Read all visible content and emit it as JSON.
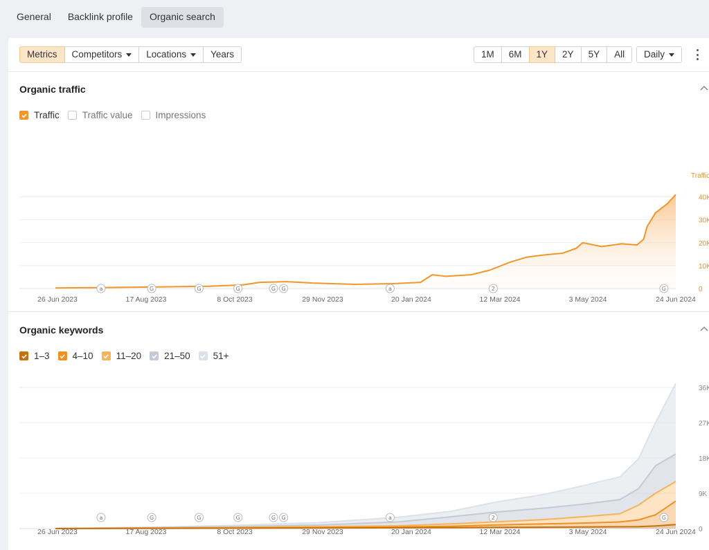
{
  "top_tabs": [
    {
      "label": "General",
      "active": false
    },
    {
      "label": "Backlink profile",
      "active": false
    },
    {
      "label": "Organic search",
      "active": true
    }
  ],
  "toolbar": {
    "left_buttons": [
      {
        "label": "Metrics",
        "active": true,
        "dropdown": false
      },
      {
        "label": "Competitors",
        "active": false,
        "dropdown": true
      },
      {
        "label": "Locations",
        "active": false,
        "dropdown": true
      },
      {
        "label": "Years",
        "active": false,
        "dropdown": false
      }
    ],
    "range_buttons": [
      {
        "label": "1M",
        "active": false
      },
      {
        "label": "6M",
        "active": false
      },
      {
        "label": "1Y",
        "active": true
      },
      {
        "label": "2Y",
        "active": false
      },
      {
        "label": "5Y",
        "active": false
      },
      {
        "label": "All",
        "active": false
      }
    ],
    "granularity": "Daily"
  },
  "traffic": {
    "title": "Organic traffic",
    "legend": [
      {
        "label": "Traffic",
        "checked": true,
        "color": "#f0962a"
      },
      {
        "label": "Traffic value",
        "checked": false,
        "color": "#c7cbd0"
      },
      {
        "label": "Impressions",
        "checked": false,
        "color": "#c7cbd0"
      }
    ],
    "axis_title": "Traffic",
    "y_ticks": [
      "40K",
      "30K",
      "20K",
      "10K",
      "0"
    ],
    "y_max": 40000
  },
  "keywords": {
    "title": "Organic keywords",
    "legend": [
      {
        "label": "1–3",
        "checked": true,
        "color": "#c47112"
      },
      {
        "label": "4–10",
        "checked": true,
        "color": "#ef9021"
      },
      {
        "label": "11–20",
        "checked": true,
        "color": "#f7b35a"
      },
      {
        "label": "21–50",
        "checked": true,
        "color": "#c3cad6"
      },
      {
        "label": "51+",
        "checked": true,
        "color": "#dde1e8"
      }
    ],
    "y_ticks": [
      "36K",
      "27K",
      "18K",
      "9K",
      "0"
    ],
    "y_max": 36000
  },
  "x_labels": [
    "26 Jun 2023",
    "17 Aug 2023",
    "8 Oct 2023",
    "29 Nov 2023",
    "20 Jan 2024",
    "12 Mar 2024",
    "3 May 2024",
    "24 Jun 2024"
  ],
  "markers": [
    {
      "label": "a",
      "date": "2023-07-23"
    },
    {
      "label": "G",
      "date": "2023-08-22"
    },
    {
      "label": "G",
      "date": "2023-09-19"
    },
    {
      "label": "G",
      "date": "2023-10-12"
    },
    {
      "label": "G",
      "date": "2023-11-02"
    },
    {
      "label": "G",
      "date": "2023-11-08"
    },
    {
      "label": "a",
      "date": "2024-01-10"
    },
    {
      "label": "2",
      "date": "2024-03-11"
    },
    {
      "label": "G",
      "date": "2024-06-20"
    }
  ],
  "chart_data": [
    {
      "type": "area",
      "title": "Organic traffic",
      "ylabel": "Traffic",
      "ylim": [
        0,
        40000
      ],
      "x_tick_labels": [
        "26 Jun 2023",
        "17 Aug 2023",
        "8 Oct 2023",
        "29 Nov 2023",
        "20 Jan 2024",
        "12 Mar 2024",
        "3 May 2024",
        "24 Jun 2024"
      ],
      "series": [
        {
          "name": "Traffic",
          "color": "#f0962a",
          "points": [
            [
              "2023-06-26",
              200
            ],
            [
              "2023-07-20",
              400
            ],
            [
              "2023-08-25",
              700
            ],
            [
              "2023-09-25",
              1000
            ],
            [
              "2023-10-15",
              1600
            ],
            [
              "2023-10-25",
              2700
            ],
            [
              "2023-11-10",
              3000
            ],
            [
              "2023-11-25",
              2400
            ],
            [
              "2023-12-20",
              1800
            ],
            [
              "2024-01-12",
              2100
            ],
            [
              "2024-01-28",
              2700
            ],
            [
              "2024-02-04",
              6000
            ],
            [
              "2024-02-12",
              5300
            ],
            [
              "2024-02-27",
              6000
            ],
            [
              "2024-03-09",
              8000
            ],
            [
              "2024-03-21",
              11500
            ],
            [
              "2024-03-31",
              13700
            ],
            [
              "2024-04-11",
              14700
            ],
            [
              "2024-04-21",
              15400
            ],
            [
              "2024-04-29",
              17500
            ],
            [
              "2024-05-03",
              20000
            ],
            [
              "2024-05-14",
              18300
            ],
            [
              "2024-05-26",
              19500
            ],
            [
              "2024-06-04",
              19000
            ],
            [
              "2024-06-08",
              21500
            ],
            [
              "2024-06-10",
              27000
            ],
            [
              "2024-06-15",
              33000
            ],
            [
              "2024-06-22",
              37000
            ],
            [
              "2024-06-27",
              41000
            ]
          ]
        }
      ]
    },
    {
      "type": "area",
      "title": "Organic keywords",
      "ylim": [
        0,
        36000
      ],
      "x_tick_labels": [
        "26 Jun 2023",
        "17 Aug 2023",
        "8 Oct 2023",
        "29 Nov 2023",
        "20 Jan 2024",
        "12 Mar 2024",
        "3 May 2024",
        "24 Jun 2024"
      ],
      "x": [
        "2023-06-26",
        "2023-08-17",
        "2023-10-08",
        "2023-11-29",
        "2024-01-15",
        "2024-02-15",
        "2024-03-12",
        "2024-04-10",
        "2024-05-03",
        "2024-05-25",
        "2024-06-05",
        "2024-06-15",
        "2024-06-27"
      ],
      "series": [
        {
          "name": "1–3",
          "color": "#c47112",
          "values": [
            0,
            50,
            80,
            120,
            200,
            250,
            300,
            350,
            400,
            450,
            500,
            650,
            1000
          ]
        },
        {
          "name": "4–10",
          "color": "#ef9021",
          "values": [
            0,
            100,
            150,
            250,
            400,
            600,
            900,
            1200,
            1400,
            1700,
            2200,
            3500,
            7000
          ]
        },
        {
          "name": "11–20",
          "color": "#f7b35a",
          "values": [
            0,
            150,
            300,
            500,
            700,
            1200,
            1700,
            2300,
            3000,
            3800,
            6000,
            9000,
            12000
          ]
        },
        {
          "name": "21–50",
          "color": "#c3cad6",
          "values": [
            0,
            200,
            500,
            900,
            1700,
            3000,
            4200,
            5200,
            6200,
            7400,
            10200,
            16000,
            19000
          ]
        },
        {
          "name": "51+",
          "color": "#dde1e8",
          "values": [
            0,
            300,
            800,
            1500,
            2900,
            4400,
            6700,
            8700,
            10900,
            13200,
            17800,
            27000,
            37000
          ]
        }
      ]
    }
  ]
}
